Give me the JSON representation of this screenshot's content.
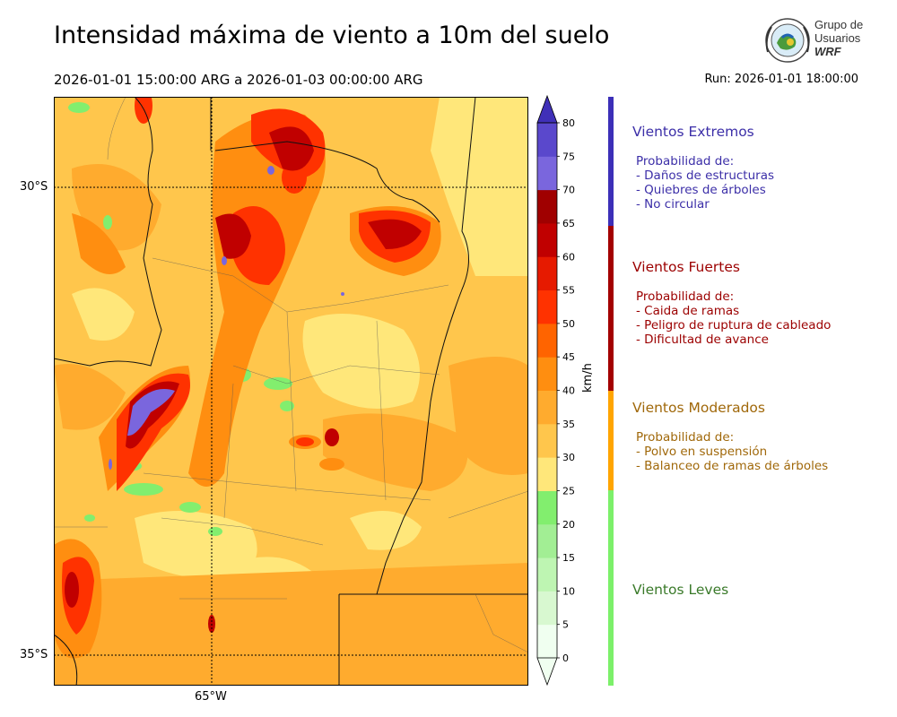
{
  "title": "Intensidad máxima de viento a 10m del suelo",
  "period": "2026-01-01 15:00:00 ARG  a  2026-01-03 00:00:00 ARG",
  "run": "Run: 2026-01-01 18:00:00",
  "logo": {
    "line1": "Grupo de",
    "line2": "Usuarios",
    "line3": "WRF"
  },
  "axes": {
    "lat_labels": [
      "30°S",
      "35°S"
    ],
    "lon_labels": [
      "65°W"
    ]
  },
  "colorbar": {
    "unit": "km/h",
    "ticks": [
      "0",
      "5",
      "10",
      "15",
      "20",
      "25",
      "30",
      "35",
      "40",
      "45",
      "50",
      "55",
      "60",
      "65",
      "70",
      "75",
      "80"
    ],
    "colors": [
      "#f0fff0",
      "#d8f8d0",
      "#bef5b2",
      "#a2ee94",
      "#82ee6e",
      "#ffe77a",
      "#ffc64c",
      "#ffab2e",
      "#ff8e10",
      "#ff6400",
      "#ff3200",
      "#e61a00",
      "#c00000",
      "#a00000",
      "#7a66dd",
      "#5a48cc",
      "#4030b8"
    ]
  },
  "categories": [
    {
      "name": "Vientos Extremos",
      "color": "#3c2fa8",
      "desc": [
        "Probabilidad de:",
        "- Daños de estructuras",
        "- Quiebres de árboles",
        "- No circular"
      ]
    },
    {
      "name": "Vientos Fuertes",
      "color": "#9c0000",
      "desc": [
        "Probabilidad de:",
        "- Caida de ramas",
        "- Peligro de ruptura de cableado",
        "- Dificultad de avance"
      ]
    },
    {
      "name": "Vientos Moderados",
      "color": "#a0680a",
      "desc": [
        "Probabilidad de:",
        "- Polvo en suspensión",
        "- Balanceo de ramas de árboles"
      ]
    },
    {
      "name": "Vientos Leves",
      "color": "#3a7a2a",
      "desc": []
    }
  ]
}
